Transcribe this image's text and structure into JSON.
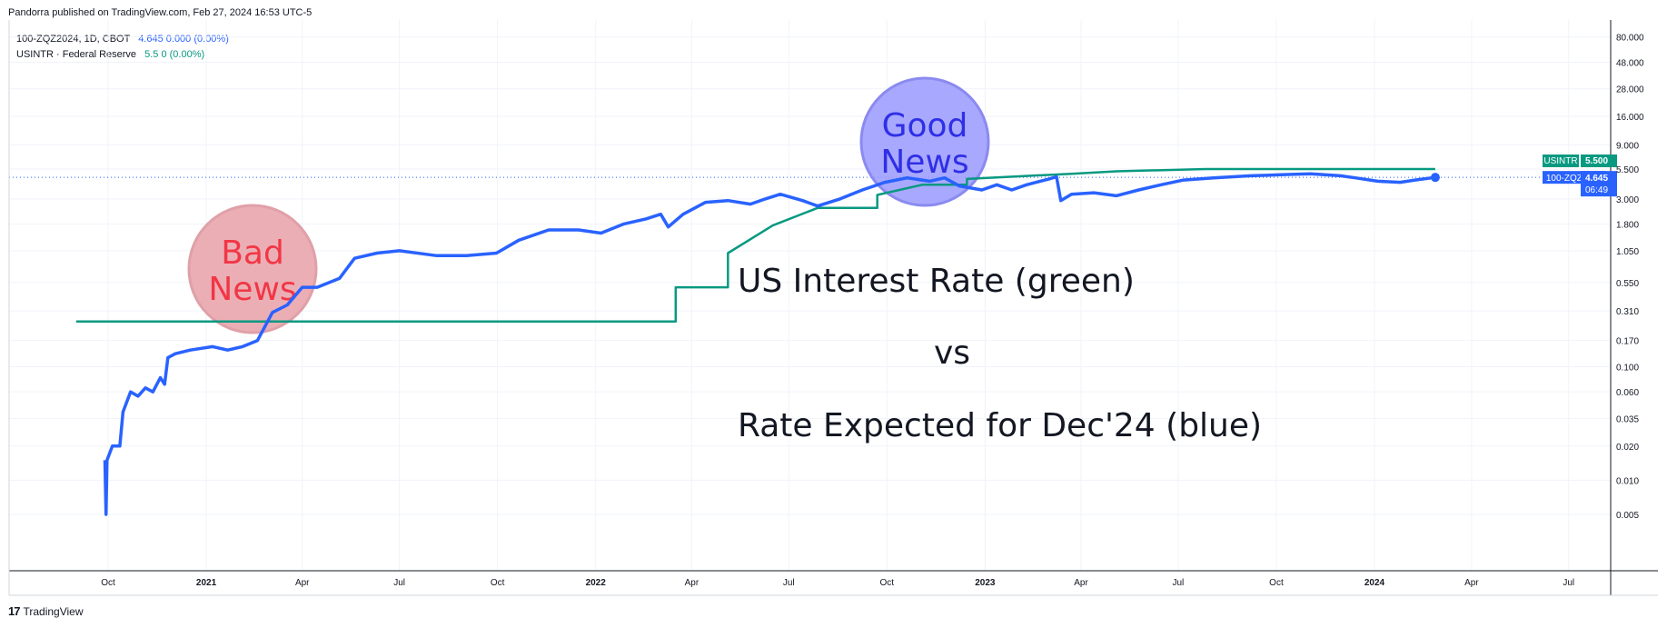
{
  "header": {
    "publisher": "Pandorra published on TradingView.com, Feb 27, 2024 16:53 UTC-5"
  },
  "legend": {
    "row1_name": "100-ZQZ2024, 1D, CBOT",
    "row1_values": "4.645  0.000 (0.00%)",
    "row2_name": "USINTR · Federal Reserve",
    "row2_values": "5.5  0 (0.00%)"
  },
  "footer": {
    "brand_mark": "17",
    "brand": "TradingView"
  },
  "colors": {
    "blue": "#2962ff",
    "green": "#089981",
    "bad_bubble": "#e8a0a8",
    "bad_text": "#f23645",
    "good_bubble": "#9999ff",
    "good_text": "#2f2fe6"
  },
  "chart_data": {
    "type": "line",
    "y_scale": "log",
    "y_ticks": [
      "80.000",
      "48.000",
      "28.000",
      "16.000",
      "9.000",
      "5.500",
      "3.000",
      "1.800",
      "1.050",
      "0.550",
      "0.310",
      "0.170",
      "0.100",
      "0.060",
      "0.035",
      "0.020",
      "0.010",
      "0.005"
    ],
    "x_ticks": [
      "Oct",
      "2021",
      "Apr",
      "Jul",
      "Oct",
      "2022",
      "Apr",
      "Jul",
      "Oct",
      "2023",
      "Apr",
      "Jul",
      "Oct",
      "2024",
      "Apr",
      "Jul"
    ],
    "annotation_lines": [
      "US Interest Rate (green)",
      "vs",
      "Rate Expected for Dec'24 (blue)"
    ],
    "bubbles": [
      {
        "lines": [
          "Bad",
          "News"
        ],
        "color": "red"
      },
      {
        "lines": [
          "Good",
          "News"
        ],
        "color": "blue"
      }
    ],
    "price_labels": [
      {
        "name": "USINTR",
        "value": "5.500"
      },
      {
        "name": "100-ZQZ2024",
        "value": "4.645",
        "countdown": "06:49"
      }
    ],
    "series": [
      {
        "name": "USINTR · Federal Reserve",
        "color": "#089981",
        "step": true,
        "points": [
          [
            "2020-09-01",
            0.25
          ],
          [
            "2022-03-17",
            0.25
          ],
          [
            "2022-03-17",
            0.5
          ],
          [
            "2022-05-05",
            0.5
          ],
          [
            "2022-05-05",
            1.0
          ],
          [
            "2022-06-16",
            1.75
          ],
          [
            "2022-07-28",
            2.5
          ],
          [
            "2022-09-22",
            2.5
          ],
          [
            "2022-09-22",
            3.25
          ],
          [
            "2022-11-03",
            4.0
          ],
          [
            "2022-12-15",
            4.0
          ],
          [
            "2022-12-15",
            4.5
          ],
          [
            "2023-02-02",
            4.75
          ],
          [
            "2023-03-23",
            5.0
          ],
          [
            "2023-05-04",
            5.25
          ],
          [
            "2023-07-27",
            5.5
          ],
          [
            "2024-02-27",
            5.5
          ]
        ]
      },
      {
        "name": "100-ZQZ2024",
        "color": "#2962ff",
        "points": [
          [
            "2020-09-28",
            0.015
          ],
          [
            "2020-09-29",
            0.005
          ],
          [
            "2020-09-30",
            0.015
          ],
          [
            "2020-10-05",
            0.02
          ],
          [
            "2020-10-12",
            0.02
          ],
          [
            "2020-10-15",
            0.04
          ],
          [
            "2020-10-22",
            0.06
          ],
          [
            "2020-10-29",
            0.055
          ],
          [
            "2020-11-05",
            0.065
          ],
          [
            "2020-11-12",
            0.06
          ],
          [
            "2020-11-19",
            0.08
          ],
          [
            "2020-11-23",
            0.07
          ],
          [
            "2020-11-26",
            0.12
          ],
          [
            "2020-12-03",
            0.13
          ],
          [
            "2020-12-17",
            0.14
          ],
          [
            "2021-01-07",
            0.15
          ],
          [
            "2021-01-21",
            0.14
          ],
          [
            "2021-02-04",
            0.15
          ],
          [
            "2021-02-18",
            0.17
          ],
          [
            "2021-03-04",
            0.3
          ],
          [
            "2021-03-18",
            0.35
          ],
          [
            "2021-04-01",
            0.5
          ],
          [
            "2021-04-15",
            0.5
          ],
          [
            "2021-05-06",
            0.6
          ],
          [
            "2021-05-20",
            0.9
          ],
          [
            "2021-06-10",
            1.0
          ],
          [
            "2021-07-01",
            1.05
          ],
          [
            "2021-08-05",
            0.95
          ],
          [
            "2021-09-02",
            0.95
          ],
          [
            "2021-09-30",
            1.0
          ],
          [
            "2021-10-21",
            1.3
          ],
          [
            "2021-11-18",
            1.6
          ],
          [
            "2021-12-16",
            1.6
          ],
          [
            "2022-01-06",
            1.5
          ],
          [
            "2022-01-27",
            1.8
          ],
          [
            "2022-02-17",
            2.0
          ],
          [
            "2022-03-03",
            2.2
          ],
          [
            "2022-03-10",
            1.7
          ],
          [
            "2022-03-24",
            2.2
          ],
          [
            "2022-04-14",
            2.8
          ],
          [
            "2022-05-05",
            2.9
          ],
          [
            "2022-05-26",
            2.7
          ],
          [
            "2022-06-09",
            3.0
          ],
          [
            "2022-06-23",
            3.3
          ],
          [
            "2022-07-14",
            2.9
          ],
          [
            "2022-07-28",
            2.6
          ],
          [
            "2022-08-18",
            3.0
          ],
          [
            "2022-09-08",
            3.6
          ],
          [
            "2022-09-29",
            4.2
          ],
          [
            "2022-10-20",
            4.6
          ],
          [
            "2022-11-10",
            4.3
          ],
          [
            "2022-11-24",
            4.6
          ],
          [
            "2022-12-08",
            3.9
          ],
          [
            "2022-12-29",
            3.6
          ],
          [
            "2023-01-12",
            4.0
          ],
          [
            "2023-01-26",
            3.6
          ],
          [
            "2023-02-09",
            4.0
          ],
          [
            "2023-03-02",
            4.5
          ],
          [
            "2023-03-09",
            4.7
          ],
          [
            "2023-03-13",
            2.9
          ],
          [
            "2023-03-23",
            3.3
          ],
          [
            "2023-04-13",
            3.4
          ],
          [
            "2023-05-04",
            3.2
          ],
          [
            "2023-05-25",
            3.6
          ],
          [
            "2023-06-15",
            4.0
          ],
          [
            "2023-07-06",
            4.4
          ],
          [
            "2023-08-03",
            4.6
          ],
          [
            "2023-09-07",
            4.8
          ],
          [
            "2023-10-05",
            4.9
          ],
          [
            "2023-11-02",
            5.0
          ],
          [
            "2023-11-30",
            4.8
          ],
          [
            "2023-12-14",
            4.6
          ],
          [
            "2024-01-04",
            4.3
          ],
          [
            "2024-01-25",
            4.2
          ],
          [
            "2024-02-08",
            4.4
          ],
          [
            "2024-02-27",
            4.645
          ]
        ]
      }
    ]
  }
}
